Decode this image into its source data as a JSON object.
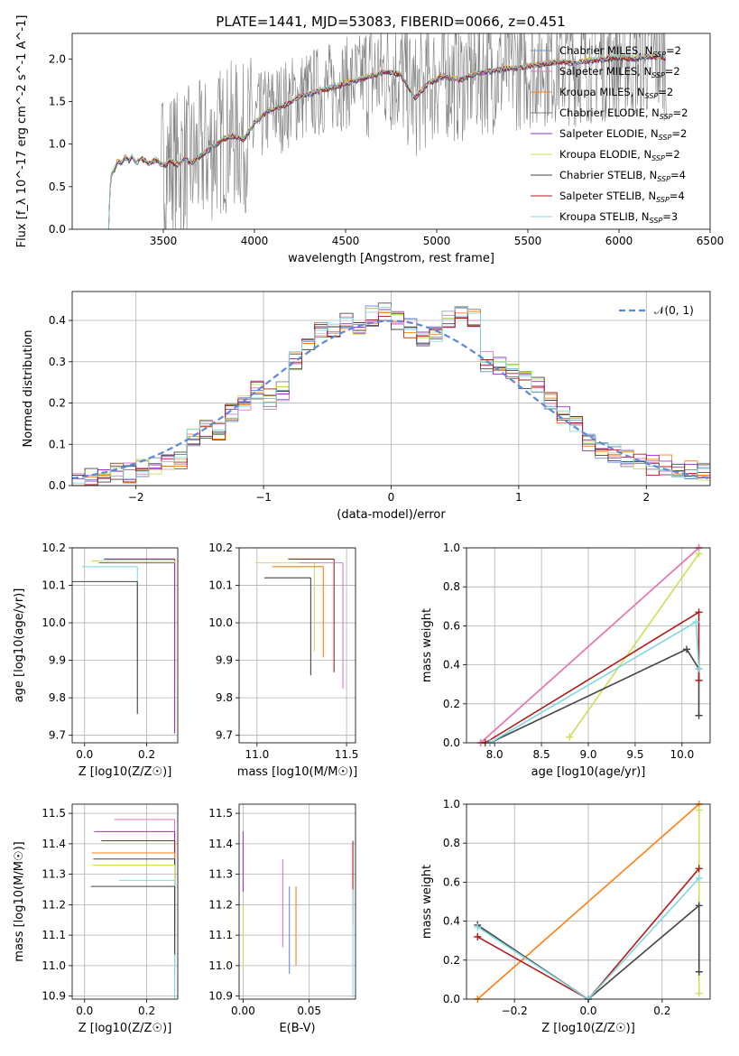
{
  "figure": {
    "title": "PLATE=1441, MJD=53083, FIBERID=0066, z=0.451"
  },
  "colors": {
    "chabrier_miles": "#6b8fd6",
    "salpeter_miles": "#e377c2",
    "kroupa_miles": "#ff7f0e",
    "chabrier_elodie": "#7f7f7f",
    "salpeter_elodie": "#9b30c8",
    "kroupa_elodie": "#c8e05a",
    "chabrier_stelib": "#444444",
    "salpeter_stelib": "#b21a1a",
    "kroupa_stelib": "#80d8e0",
    "normal_curve": "#5b8ad9"
  },
  "chart_data": [
    {
      "id": "spectrum",
      "type": "line",
      "title": "PLATE=1441, MJD=53083, FIBERID=0066, z=0.451",
      "xlabel": "wavelength [Angstrom, rest frame]",
      "ylabel": "Flux [f_λ 10^-17 erg cm^-2 s^-1 A^-1]",
      "xlim": [
        3000,
        6500
      ],
      "ylim": [
        0,
        2.3
      ],
      "xticks": [
        3500,
        4000,
        4500,
        5000,
        5500,
        6000,
        6500
      ],
      "yticks": [
        0.0,
        0.5,
        1.0,
        1.5,
        2.0
      ],
      "legend_position": "top-right",
      "series": [
        {
          "name": "Chabrier MILES, N_SSP=2"
        },
        {
          "name": "Salpeter MILES, N_SSP=2"
        },
        {
          "name": "Kroupa MILES, N_SSP=2"
        },
        {
          "name": "Chabrier ELODIE, N_SSP=2"
        },
        {
          "name": "Salpeter ELODIE, N_SSP=2"
        },
        {
          "name": "Kroupa ELODIE, N_SSP=2"
        },
        {
          "name": "Chabrier STELIB, N_SSP=4"
        },
        {
          "name": "Salpeter STELIB, N_SSP=4"
        },
        {
          "name": "Kroupa STELIB, N_SSP=3"
        }
      ],
      "model_x": [
        3200,
        3210,
        3230,
        3250,
        3270,
        3290,
        3310,
        3330,
        3350,
        3380,
        3420,
        3460,
        3500,
        3540,
        3580,
        3620,
        3660,
        3700,
        3760,
        3820,
        3880,
        3940,
        4000,
        4080,
        4160,
        4240,
        4320,
        4400,
        4480,
        4560,
        4640,
        4720,
        4800,
        4880,
        4960,
        5040,
        5120,
        5200,
        5280,
        5360,
        5440,
        5520,
        5600,
        5680,
        5760,
        5840,
        5920,
        6000,
        6080,
        6160,
        6240
      ],
      "model_y": [
        0.0,
        0.62,
        0.7,
        0.8,
        0.78,
        0.85,
        0.8,
        0.86,
        0.78,
        0.84,
        0.77,
        0.82,
        0.75,
        0.8,
        0.76,
        0.82,
        0.78,
        0.86,
        0.95,
        1.05,
        1.1,
        1.05,
        1.25,
        1.4,
        1.45,
        1.55,
        1.6,
        1.65,
        1.7,
        1.75,
        1.8,
        1.85,
        1.82,
        1.55,
        1.72,
        1.8,
        1.75,
        1.82,
        1.85,
        1.88,
        1.9,
        1.92,
        1.95,
        1.97,
        1.95,
        1.98,
        2.0,
        2.02,
        2.0,
        2.03,
        2.02
      ]
    },
    {
      "id": "residuals",
      "type": "bar",
      "xlabel": "(data-model)/error",
      "ylabel": "Normed distribution",
      "xlim": [
        -2.5,
        2.5
      ],
      "ylim": [
        0,
        0.47
      ],
      "xticks": [
        -2,
        -1,
        0,
        1,
        2
      ],
      "yticks": [
        0.0,
        0.1,
        0.2,
        0.3,
        0.4
      ],
      "legend_position": "top-right",
      "normal_label": "𝒩(0, 1)",
      "bin_width": 0.1,
      "bin_start": -2.5,
      "values": [
        0.01,
        0.02,
        0.02,
        0.03,
        0.03,
        0.04,
        0.05,
        0.06,
        0.06,
        0.12,
        0.14,
        0.13,
        0.18,
        0.2,
        0.23,
        0.21,
        0.23,
        0.3,
        0.33,
        0.38,
        0.37,
        0.4,
        0.38,
        0.41,
        0.42,
        0.4,
        0.38,
        0.36,
        0.37,
        0.4,
        0.43,
        0.41,
        0.3,
        0.29,
        0.27,
        0.26,
        0.25,
        0.21,
        0.17,
        0.15,
        0.1,
        0.09,
        0.08,
        0.07,
        0.06,
        0.05,
        0.05,
        0.04,
        0.04,
        0.03
      ]
    },
    {
      "id": "age_vs_z",
      "type": "scatter",
      "xlabel": "Z [log10(Z/Z☉)]",
      "ylabel": "age [log10(age/yr)]",
      "xlim": [
        -0.04,
        0.3
      ],
      "ylim": [
        9.68,
        10.2
      ],
      "xticks": [
        0.0,
        0.2
      ],
      "yticks": [
        9.7,
        9.8,
        9.9,
        10.0,
        10.1,
        10.2
      ],
      "points": [
        {
          "x": 0.29,
          "y": 10.17,
          "s": "salpeter_stelib",
          "xe": 0.3,
          "ye": 0.0
        },
        {
          "x": 0.29,
          "y": 10.165,
          "s": "kroupa_elodie",
          "xe": 0.27,
          "ye": 0.45
        },
        {
          "x": 0.29,
          "y": 10.16,
          "s": "salpeter_elodie",
          "xe": 0.24,
          "ye": 0.0
        },
        {
          "x": 0.17,
          "y": 10.15,
          "s": "kroupa_stelib",
          "xe": 0.12,
          "ye": 0.17
        },
        {
          "x": 0.17,
          "y": 10.11,
          "s": "chabrier_stelib",
          "xe": 0.12,
          "ye": 0.1
        }
      ]
    },
    {
      "id": "age_vs_mass",
      "type": "scatter",
      "xlabel": "mass [log10(M/M☉)]",
      "ylabel": "",
      "xlim": [
        10.9,
        11.55
      ],
      "ylim": [
        9.68,
        10.2
      ],
      "xticks": [
        11.0,
        11.5
      ],
      "yticks": [
        9.7,
        9.8,
        9.9,
        10.0,
        10.1,
        10.2
      ],
      "points": [
        {
          "x": 11.43,
          "y": 10.17,
          "s": "salpeter_stelib"
        },
        {
          "x": 11.32,
          "y": 10.16,
          "s": "kroupa_elodie"
        },
        {
          "x": 11.48,
          "y": 10.16,
          "s": "salpeter_miles"
        },
        {
          "x": 11.37,
          "y": 10.15,
          "s": "kroupa_miles"
        },
        {
          "x": 11.3,
          "y": 10.12,
          "s": "chabrier_stelib"
        }
      ]
    },
    {
      "id": "massweight_vs_age",
      "type": "line",
      "xlabel": "age [log10(age/yr)]",
      "ylabel": "mass weight",
      "xlim": [
        7.7,
        10.3
      ],
      "ylim": [
        0,
        1.0
      ],
      "xticks": [
        8.0,
        8.5,
        9.0,
        9.5,
        10.0
      ],
      "yticks": [
        0.0,
        0.2,
        0.4,
        0.6,
        0.8,
        1.0
      ],
      "lines": [
        {
          "s": "kroupa_miles",
          "x": [
            7.85,
            10.18
          ],
          "y": [
            0.0,
            1.0
          ]
        },
        {
          "s": "salpeter_miles",
          "x": [
            7.85,
            10.18
          ],
          "y": [
            0.0,
            1.0
          ]
        },
        {
          "s": "kroupa_elodie",
          "x": [
            8.8,
            10.18
          ],
          "y": [
            0.03,
            0.97
          ]
        },
        {
          "s": "chabrier_stelib",
          "x": [
            7.95,
            10.05,
            10.18,
            10.18
          ],
          "y": [
            0.0,
            0.48,
            0.38,
            0.14
          ]
        },
        {
          "s": "salpeter_stelib",
          "x": [
            7.9,
            10.18,
            10.18
          ],
          "y": [
            0.0,
            0.67,
            0.32
          ]
        },
        {
          "s": "kroupa_stelib",
          "x": [
            7.95,
            10.15,
            10.18
          ],
          "y": [
            0.0,
            0.62,
            0.38
          ]
        }
      ]
    },
    {
      "id": "mass_vs_z",
      "type": "scatter",
      "xlabel": "Z [log10(Z/Z☉)]",
      "ylabel": "mass [log10(M/M☉)]",
      "xlim": [
        -0.04,
        0.3
      ],
      "ylim": [
        10.89,
        11.53
      ],
      "xticks": [
        0.0,
        0.2
      ],
      "yticks": [
        10.9,
        11.0,
        11.1,
        11.2,
        11.3,
        11.4,
        11.5
      ],
      "points": [
        {
          "x": 0.29,
          "y": 11.48,
          "s": "salpeter_miles"
        },
        {
          "x": 0.29,
          "y": 11.44,
          "s": "salpeter_elodie"
        },
        {
          "x": 0.29,
          "y": 11.41,
          "s": "salpeter_stelib"
        },
        {
          "x": 0.29,
          "y": 11.37,
          "s": "kroupa_miles"
        },
        {
          "x": 0.29,
          "y": 11.35,
          "s": "chabrier_stelib"
        },
        {
          "x": 0.29,
          "y": 11.33,
          "s": "kroupa_elodie"
        },
        {
          "x": 0.29,
          "y": 11.28,
          "s": "kroupa_stelib"
        },
        {
          "x": 0.29,
          "y": 11.26,
          "s": "chabrier_stelib"
        }
      ]
    },
    {
      "id": "mass_vs_ebv",
      "type": "scatter",
      "xlabel": "E(B-V)",
      "ylabel": "",
      "xlim": [
        -0.003,
        0.085
      ],
      "ylim": [
        10.89,
        11.53
      ],
      "xticks": [
        0.0,
        0.05
      ],
      "yticks": [
        10.9,
        11.0,
        11.1,
        11.2,
        11.3,
        11.4,
        11.5
      ],
      "points": [
        {
          "x": 0.0,
          "y": 11.44,
          "s": "salpeter_elodie"
        },
        {
          "x": 0.0,
          "y": 11.2,
          "s": "kroupa_elodie"
        },
        {
          "x": 0.03,
          "y": 11.35,
          "s": "salpeter_miles"
        },
        {
          "x": 0.035,
          "y": 11.26,
          "s": "chabrier_miles"
        },
        {
          "x": 0.04,
          "y": 11.26,
          "s": "kroupa_miles"
        },
        {
          "x": 0.083,
          "y": 11.41,
          "s": "salpeter_stelib"
        },
        {
          "x": 0.083,
          "y": 11.25,
          "s": "kroupa_stelib"
        }
      ]
    },
    {
      "id": "massweight_vs_z",
      "type": "line",
      "xlabel": "Z [log10(Z/Z☉)]",
      "ylabel": "mass weight",
      "xlim": [
        -0.33,
        0.33
      ],
      "ylim": [
        0,
        1.0
      ],
      "xticks": [
        -0.2,
        0.0,
        0.2
      ],
      "yticks": [
        0.0,
        0.2,
        0.4,
        0.6,
        0.8,
        1.0
      ],
      "lines": [
        {
          "s": "kroupa_miles",
          "x": [
            -0.3,
            0.3
          ],
          "y": [
            0.0,
            1.0
          ]
        },
        {
          "s": "kroupa_elodie",
          "x": [
            0.3,
            0.3
          ],
          "y": [
            0.03,
            0.97
          ]
        },
        {
          "s": "chabrier_stelib",
          "x": [
            -0.3,
            0.0,
            0.3,
            0.3
          ],
          "y": [
            0.38,
            0.0,
            0.48,
            0.14
          ]
        },
        {
          "s": "salpeter_stelib",
          "x": [
            -0.3,
            0.0,
            0.3
          ],
          "y": [
            0.32,
            0.0,
            0.67
          ]
        },
        {
          "s": "kroupa_stelib",
          "x": [
            -0.3,
            0.0,
            0.3
          ],
          "y": [
            0.37,
            0.0,
            0.62
          ]
        }
      ]
    }
  ]
}
